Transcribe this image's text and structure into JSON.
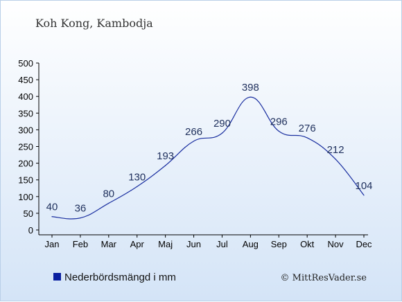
{
  "chart_data": {
    "type": "line",
    "title": "Koh Kong, Kambodja",
    "categories": [
      "Jan",
      "Feb",
      "Mar",
      "Apr",
      "Maj",
      "Jun",
      "Jul",
      "Aug",
      "Sep",
      "Okt",
      "Nov",
      "Dec"
    ],
    "series": [
      {
        "name": "Nederbördsmängd i mm",
        "values": [
          40,
          36,
          80,
          130,
          193,
          266,
          290,
          398,
          296,
          276,
          212,
          104
        ]
      }
    ],
    "ylim": [
      0,
      500
    ],
    "yticks": [
      0,
      50,
      100,
      150,
      200,
      250,
      300,
      350,
      400,
      450,
      500
    ],
    "grid": false,
    "legend": "bottom-left",
    "colors": {
      "line": "#1a2fa0",
      "legend_marker": "#0a1fa0",
      "label": "#1e2f5c"
    }
  },
  "credit": "© MittResVader.se"
}
